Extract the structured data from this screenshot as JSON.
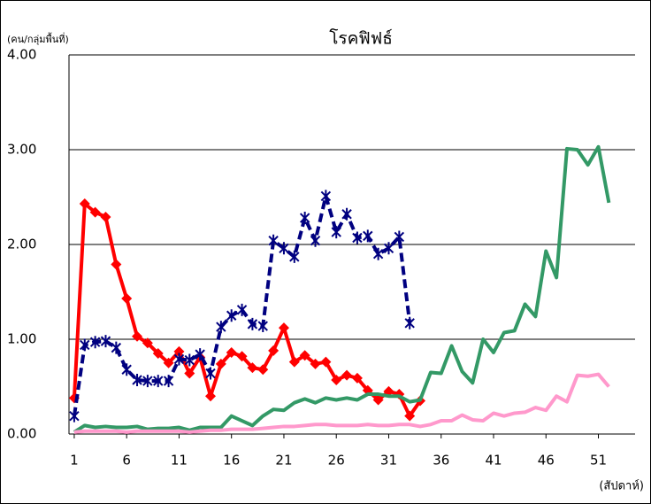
{
  "chart_data": {
    "type": "line",
    "title": "โรคฟิฟธ์",
    "y_label": "(คน/กลุ่มพื้นที่)",
    "x_label": "(สัปดาห์)",
    "x": [
      1,
      2,
      3,
      4,
      5,
      6,
      7,
      8,
      9,
      10,
      11,
      12,
      13,
      14,
      15,
      16,
      17,
      18,
      19,
      20,
      21,
      22,
      23,
      24,
      25,
      26,
      27,
      28,
      29,
      30,
      31,
      32,
      33,
      34,
      35,
      36,
      37,
      38,
      39,
      40,
      41,
      42,
      43,
      44,
      45,
      46,
      47,
      48,
      49,
      50,
      51,
      52
    ],
    "xlim": [
      0.5,
      54.5
    ],
    "xticks": [
      1,
      6,
      11,
      16,
      21,
      26,
      31,
      36,
      41,
      46,
      51
    ],
    "ylim": [
      0,
      4
    ],
    "yticks": [
      {
        "value": 0,
        "label": "0.00"
      },
      {
        "value": 1,
        "label": "1.00"
      },
      {
        "value": 2,
        "label": "2.00"
      },
      {
        "value": 3,
        "label": "3.00"
      },
      {
        "value": 4,
        "label": "4.00"
      }
    ],
    "grid": true,
    "series": [
      {
        "color": "#ff0000",
        "marker": "diamond",
        "values": [
          0.38,
          2.43,
          2.34,
          2.29,
          1.79,
          1.43,
          1.03,
          0.96,
          0.85,
          0.75,
          0.87,
          0.64,
          0.81,
          0.4,
          0.74,
          0.86,
          0.82,
          0.7,
          0.68,
          0.88,
          1.12,
          0.76,
          0.83,
          0.74,
          0.76,
          0.57,
          0.62,
          0.59,
          0.46,
          0.36,
          0.45,
          0.42,
          0.19,
          0.35,
          null,
          null,
          null,
          null,
          null,
          null,
          null,
          null,
          null,
          null,
          null,
          null,
          null,
          null,
          null,
          null,
          null,
          null
        ]
      },
      {
        "color": "#000080",
        "marker": "star",
        "dashed": true,
        "values": [
          0.19,
          0.94,
          0.97,
          0.98,
          0.91,
          0.68,
          0.57,
          0.56,
          0.56,
          0.56,
          0.79,
          0.78,
          0.84,
          0.64,
          1.13,
          1.25,
          1.31,
          1.16,
          1.14,
          2.04,
          1.96,
          1.87,
          2.28,
          2.04,
          2.51,
          2.13,
          2.32,
          2.07,
          2.09,
          1.9,
          1.96,
          2.08,
          1.17,
          null,
          null,
          null,
          null,
          null,
          null,
          null,
          null,
          null,
          null,
          null,
          null,
          null,
          null,
          null,
          null,
          null,
          null,
          null
        ]
      },
      {
        "color": "#339966",
        "values": [
          0.02,
          0.09,
          0.07,
          0.08,
          0.07,
          0.07,
          0.08,
          0.05,
          0.06,
          0.06,
          0.07,
          0.04,
          0.07,
          0.07,
          0.07,
          0.19,
          0.14,
          0.09,
          0.19,
          0.26,
          0.25,
          0.33,
          0.37,
          0.33,
          0.38,
          0.36,
          0.38,
          0.36,
          0.42,
          0.42,
          0.4,
          0.4,
          0.34,
          0.36,
          0.65,
          0.64,
          0.93,
          0.66,
          0.54,
          1.0,
          0.86,
          1.07,
          1.09,
          1.37,
          1.24,
          1.93,
          1.65,
          3.01,
          3.0,
          2.84,
          3.03,
          2.44
        ]
      },
      {
        "color": "#ff99cc",
        "values": [
          0.02,
          0.03,
          0.03,
          0.03,
          0.03,
          0.02,
          0.03,
          0.03,
          0.03,
          0.03,
          0.03,
          0.02,
          0.03,
          0.04,
          0.04,
          0.05,
          0.05,
          0.05,
          0.06,
          0.07,
          0.08,
          0.08,
          0.09,
          0.1,
          0.1,
          0.09,
          0.09,
          0.09,
          0.1,
          0.09,
          0.09,
          0.1,
          0.1,
          0.08,
          0.1,
          0.14,
          0.14,
          0.2,
          0.15,
          0.14,
          0.22,
          0.19,
          0.22,
          0.23,
          0.28,
          0.25,
          0.4,
          0.34,
          0.62,
          0.61,
          0.63,
          0.5
        ]
      }
    ]
  }
}
